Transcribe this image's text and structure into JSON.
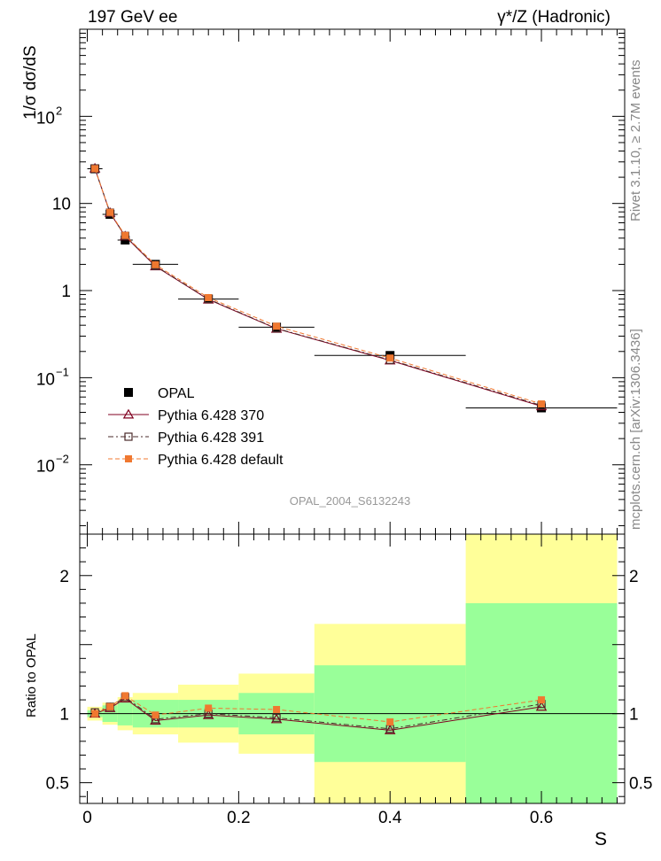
{
  "header": {
    "title_left": "197 GeV ee",
    "title_right": "γ*/Z (Hadronic)"
  },
  "side_text": {
    "rivet": "Rivet 3.1.10, ≥ 2.7M events",
    "mcplots": "mcplots.cern.ch [arXiv:1306.3436]"
  },
  "watermark": "OPAL_2004_S6132243",
  "main_plot": {
    "ylabel": "1/σ dσ/dS",
    "yscale": "log",
    "ylim": [
      0.0016,
      1000
    ],
    "ytick_labels": [
      {
        "value": 0.01,
        "base": "10",
        "exp": "−2"
      },
      {
        "value": 0.1,
        "base": "10",
        "exp": "−1"
      },
      {
        "value": 1,
        "base": "1",
        "exp": ""
      },
      {
        "value": 10,
        "base": "10",
        "exp": ""
      },
      {
        "value": 100,
        "base": "10",
        "exp": "2"
      }
    ]
  },
  "ratio_plot": {
    "ylabel": "Ratio to OPAL",
    "ylim": [
      0.35,
      2.3
    ],
    "ytick_labels": [
      "2",
      "1",
      "0.5"
    ],
    "xlabel": "S",
    "xlim": [
      -0.01,
      0.71
    ],
    "xtick_labels": [
      "0",
      "0.2",
      "0.4",
      "0.6"
    ]
  },
  "legend": [
    {
      "label": "OPAL",
      "color": "#000000",
      "marker": "filled-square"
    },
    {
      "label": "Pythia 6.428 370",
      "color": "#800020",
      "marker": "open-triangle"
    },
    {
      "label": "Pythia 6.428 391",
      "color": "#4a2a2a",
      "marker": "open-square"
    },
    {
      "label": "Pythia 6.428 default",
      "color": "#f07830",
      "marker": "filled-square"
    }
  ],
  "chart_data": {
    "type": "scatter",
    "x": [
      0.01,
      0.03,
      0.05,
      0.09,
      0.16,
      0.25,
      0.4,
      0.6
    ],
    "bin_edges": [
      0.0,
      0.02,
      0.04,
      0.06,
      0.12,
      0.2,
      0.3,
      0.5,
      0.7
    ],
    "series": [
      {
        "name": "OPAL",
        "values": [
          25,
          7.5,
          3.8,
          2.0,
          0.8,
          0.38,
          0.18,
          0.045
        ]
      },
      {
        "name": "Pythia 6.428 370",
        "values": [
          25.2,
          7.8,
          4.2,
          1.9,
          0.79,
          0.365,
          0.158,
          0.047
        ]
      },
      {
        "name": "Pythia 6.428 391",
        "values": [
          25.3,
          7.85,
          4.25,
          1.92,
          0.8,
          0.368,
          0.16,
          0.048
        ]
      },
      {
        "name": "Pythia 6.428 default",
        "values": [
          25.1,
          7.9,
          4.3,
          1.98,
          0.83,
          0.39,
          0.168,
          0.05
        ]
      }
    ],
    "ratios": [
      {
        "name": "Pythia 6.428 370",
        "values": [
          1.0,
          1.04,
          1.11,
          0.95,
          0.99,
          0.96,
          0.88,
          1.05
        ]
      },
      {
        "name": "Pythia 6.428 391",
        "values": [
          1.01,
          1.05,
          1.12,
          0.96,
          1.0,
          0.97,
          0.89,
          1.07
        ]
      },
      {
        "name": "Pythia 6.428 default",
        "values": [
          1.0,
          1.05,
          1.13,
          0.99,
          1.04,
          1.03,
          0.94,
          1.1
        ]
      }
    ],
    "uncertainty_bands": {
      "green_half_width": [
        0.025,
        0.06,
        0.085,
        0.1,
        0.1,
        0.15,
        0.35,
        0.8
      ],
      "yellow_half_width": [
        0.05,
        0.08,
        0.12,
        0.15,
        0.21,
        0.29,
        0.65,
        1.5
      ]
    }
  }
}
